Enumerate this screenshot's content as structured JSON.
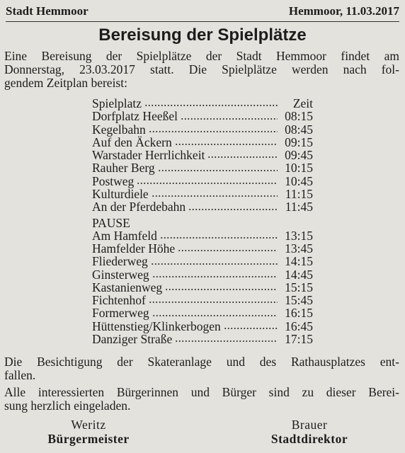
{
  "header": {
    "left": "Stadt Hemmoor",
    "right": "Hemmoor, 11.03.2017"
  },
  "title": "Bereisung der Spielplätze",
  "intro": {
    "lines": [
      "Eine Bereisung der Spielplätze der Stadt Hemmoor findet am",
      "Donnerstag, 23.03.2017 statt. Die Spielplätze werden nach fol-",
      "gendem Zeitplan bereist:"
    ]
  },
  "schedule": {
    "header": [
      "Spielplatz",
      "Zeit"
    ],
    "rows": [
      [
        "Dorfplatz Heeßel",
        "08:15"
      ],
      [
        "Kegelbahn",
        "08:45"
      ],
      [
        "Auf den Äckern",
        "09:15"
      ],
      [
        "Warstader Herrlichkeit",
        "09:45"
      ],
      [
        "Rauher Berg",
        "10:15"
      ],
      [
        "Postweg",
        "10:45"
      ],
      [
        "Kulturdiele",
        "11:15"
      ],
      [
        "An der Pferdebahn",
        "11:45"
      ]
    ],
    "pause": "PAUSE",
    "rows_after": [
      [
        "Am Hamfeld",
        "13:15"
      ],
      [
        "Hamfelder Höhe",
        "13:45"
      ],
      [
        "Fliederweg",
        "14:15"
      ],
      [
        "Ginsterweg",
        "14:45"
      ],
      [
        "Kastanienweg",
        "15:15"
      ],
      [
        "Fichtenhof",
        "15:45"
      ],
      [
        "Formerweg",
        "16:15"
      ],
      [
        "Hüttenstieg/Klinkerbogen",
        "16:45"
      ],
      [
        "Danziger Straße",
        "17:15"
      ]
    ]
  },
  "closing": [
    {
      "lines": [
        "Die Besichtigung der Skateranlage und des Rathausplatzes ent-",
        "fallen."
      ]
    },
    {
      "lines": [
        "Alle interessierten Bürgerinnen und Bürger sind zu dieser Berei-",
        "sung herzlich eingeladen."
      ]
    }
  ],
  "signatures": [
    {
      "name": "Weritz",
      "role": "Bürgermeister"
    },
    {
      "name": "Brauer",
      "role": "Stadtdirektor"
    }
  ]
}
